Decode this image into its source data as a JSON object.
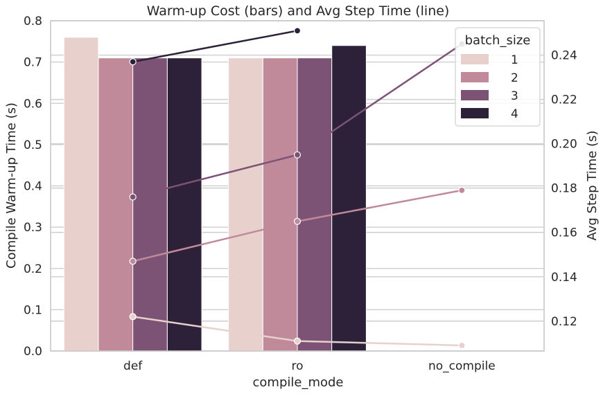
{
  "chart_data": {
    "type": "bar",
    "title": "Warm-up Cost (bars) and Avg Step Time (line)",
    "xlabel": "compile_mode",
    "ylabel": "Compile Warm-up Time (s)",
    "y2label": "Avg Step Time (s)",
    "categories": [
      "def",
      "ro",
      "no_compile"
    ],
    "ylim": [
      0,
      0.8
    ],
    "y_ticks": [
      "0.0",
      "0.1",
      "0.2",
      "0.3",
      "0.4",
      "0.5",
      "0.6",
      "0.7",
      "0.8"
    ],
    "y2lim": [
      0.1065,
      0.2555
    ],
    "y2_ticks": [
      "0.12",
      "0.14",
      "0.16",
      "0.18",
      "0.20",
      "0.22",
      "0.24"
    ],
    "legend": {
      "title": "batch_size",
      "position": "top-right"
    },
    "series": [
      {
        "name": "1",
        "color": "#e8d0cc",
        "bar_values": [
          0.76,
          0.71,
          null
        ],
        "line_values": [
          0.122,
          0.111,
          0.109
        ]
      },
      {
        "name": "2",
        "color": "#c08a9b",
        "bar_values": [
          0.71,
          0.71,
          null
        ],
        "line_values": [
          0.147,
          0.165,
          0.179
        ]
      },
      {
        "name": "3",
        "color": "#7c5275",
        "bar_values": [
          0.71,
          0.71,
          null
        ],
        "line_values": [
          0.176,
          0.195,
          0.245
        ]
      },
      {
        "name": "4",
        "color": "#2d2139",
        "bar_values": [
          0.71,
          0.74,
          null
        ],
        "line_values": [
          0.237,
          0.251,
          null
        ]
      }
    ],
    "grid": true,
    "bar_line_overlay": true
  }
}
